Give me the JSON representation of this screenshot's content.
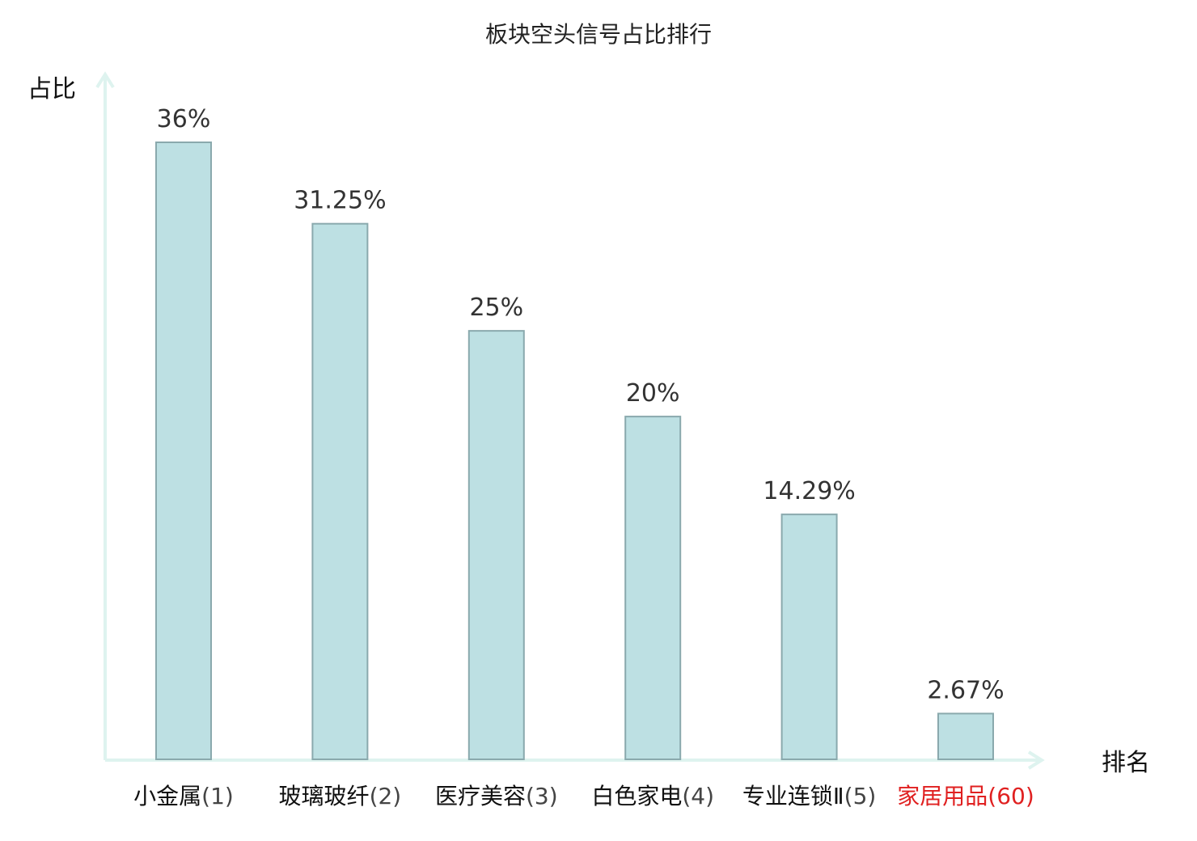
{
  "chart_data": {
    "type": "bar",
    "title": "板块空头信号占比排行",
    "xlabel": "排名",
    "ylabel": "占比",
    "categories": [
      {
        "name": "小金属",
        "rank": "(1)",
        "highlight": false
      },
      {
        "name": "玻璃玻纤",
        "rank": "(2)",
        "highlight": false
      },
      {
        "name": "医疗美容",
        "rank": "(3)",
        "highlight": false
      },
      {
        "name": "白色家电",
        "rank": "(4)",
        "highlight": false
      },
      {
        "name": "专业连锁Ⅱ",
        "rank": "(5)",
        "highlight": false
      },
      {
        "name": "家居用品",
        "rank": "(60)",
        "highlight": true
      }
    ],
    "values": [
      36,
      31.25,
      25,
      20,
      14.29,
      2.67
    ],
    "value_labels": [
      "36%",
      "31.25%",
      "25%",
      "20%",
      "14.29%",
      "2.67%"
    ],
    "ylim": [
      0,
      36
    ],
    "grid": false,
    "legend": "none",
    "colors": {
      "bar_fill": "#bde0e3",
      "bar_stroke": "#8aa9ad",
      "axis": "#def3ef",
      "highlight": "#e02020"
    }
  }
}
